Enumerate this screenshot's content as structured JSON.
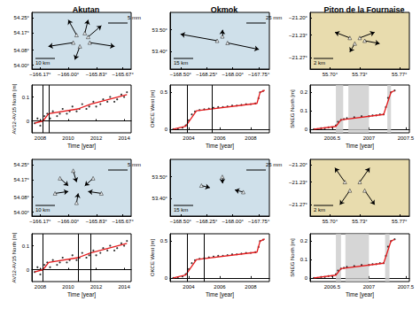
{
  "chart_data": [
    {
      "type": "map",
      "title": "Akutan",
      "color": "#cfe0ea",
      "grid": false,
      "xlim": [
        -166.22,
        -165.62
      ],
      "ylim": [
        53.98,
        54.28
      ],
      "xticks": [
        {
          "value": -166.17,
          "label": "−166.17°"
        },
        {
          "value": -166.0,
          "label": "−166.00°"
        },
        {
          "value": -165.83,
          "label": "−165.83°"
        },
        {
          "value": -165.67,
          "label": "−165.67°"
        }
      ],
      "yticks": [
        {
          "value": 54.0,
          "label": "54.00°"
        },
        {
          "value": 54.08,
          "label": "54.08°"
        },
        {
          "value": 54.17,
          "label": "54.17°"
        },
        {
          "value": 54.25,
          "label": "54.25°"
        }
      ],
      "annotations": [
        "10 km",
        "5 mm"
      ],
      "vectors": [
        [
          -165.95,
          54.16,
          -166.0,
          54.24
        ],
        [
          -165.88,
          54.15,
          -165.8,
          54.21
        ],
        [
          -165.97,
          54.12,
          -166.12,
          54.1
        ],
        [
          -165.87,
          54.12,
          -165.72,
          54.1
        ],
        [
          -165.93,
          54.1,
          -165.96,
          54.03
        ],
        [
          -165.9,
          54.17,
          -165.88,
          54.24
        ]
      ]
    },
    {
      "type": "map",
      "title": "Okmok",
      "color": "#cfe0ea",
      "grid": false,
      "xlim": [
        -168.6,
        -167.65
      ],
      "ylim": [
        53.32,
        53.58
      ],
      "xticks": [
        {
          "value": -168.5,
          "label": "−168.50°"
        },
        {
          "value": -168.25,
          "label": "−168.25°"
        },
        {
          "value": -168.0,
          "label": "−168.00°"
        },
        {
          "value": -167.75,
          "label": "−167.75°"
        }
      ],
      "yticks": [
        {
          "value": 53.4,
          "label": "53.40°"
        },
        {
          "value": 53.5,
          "label": "53.50°"
        }
      ],
      "annotations": [
        "15 km",
        "25 mm"
      ],
      "vectors": [
        [
          -168.15,
          53.45,
          -168.5,
          53.48
        ],
        [
          -168.05,
          53.44,
          -167.75,
          53.41
        ],
        [
          -168.1,
          53.47,
          -168.1,
          53.5
        ]
      ]
    },
    {
      "type": "map",
      "title": "Piton de la Fournaise",
      "color": "#e8dcae",
      "grid": false,
      "xlim": [
        55.68,
        55.78
      ],
      "ylim": [
        -21.29,
        -21.19
      ],
      "xticks": [
        {
          "value": 55.7,
          "label": "55.70°"
        },
        {
          "value": 55.73,
          "label": "55.73°"
        },
        {
          "value": 55.77,
          "label": "55.77°"
        }
      ],
      "yticks": [
        {
          "value": -21.27,
          "label": "−21.27°"
        },
        {
          "value": -21.23,
          "label": "−21.23°"
        },
        {
          "value": -21.2,
          "label": "−21.20°"
        }
      ],
      "annotations": [
        "2 km"
      ],
      "vectors": [
        [
          55.72,
          -21.235,
          55.705,
          -21.225
        ],
        [
          55.73,
          -21.235,
          55.745,
          -21.225
        ],
        [
          55.725,
          -21.245,
          55.72,
          -21.26
        ],
        [
          55.735,
          -21.24,
          55.75,
          -21.245
        ]
      ]
    },
    {
      "type": "scatter",
      "x_label": "Time [year]",
      "y_label": "AV12-AV15 North [m]",
      "grid": false,
      "xlim": [
        2007.4,
        2014.5
      ],
      "ylim": [
        -0.05,
        0.15
      ],
      "xticks": [
        2008,
        2010,
        2012,
        2014
      ],
      "yticks": [
        0,
        0.1
      ],
      "events": [
        2008.2,
        2008.6
      ],
      "series": [
        {
          "type": "scatter",
          "marker": "circle",
          "color": "#000000",
          "x": [
            2007.6,
            2007.8,
            2008.0,
            2008.1,
            2008.3,
            2008.5,
            2008.7,
            2008.9,
            2009.2,
            2009.4,
            2009.6,
            2009.9,
            2010.1,
            2010.3,
            2010.6,
            2010.8,
            2011.0,
            2011.3,
            2011.5,
            2011.8,
            2012.0,
            2012.3,
            2012.5,
            2012.8,
            2013.0,
            2013.3,
            2013.5,
            2013.8,
            2014.0,
            2014.2
          ],
          "values": [
            -0.01,
            0.01,
            -0.02,
            0.0,
            0.02,
            0.03,
            0.01,
            0.04,
            0.02,
            0.03,
            0.05,
            0.03,
            0.04,
            0.06,
            0.04,
            0.05,
            0.07,
            0.05,
            0.06,
            0.08,
            0.06,
            0.07,
            0.09,
            0.08,
            0.1,
            0.08,
            0.09,
            0.11,
            0.1,
            0.12
          ]
        },
        {
          "type": "line",
          "line_style": "solid",
          "color": "#e41a1c",
          "x": [
            2007.6,
            2008.2,
            2008.6,
            2010.7,
            2011.6,
            2014.2
          ],
          "values": [
            -0.01,
            0.0,
            0.03,
            0.05,
            0.07,
            0.11
          ]
        }
      ]
    },
    {
      "type": "scatter",
      "x_label": "Time [year]",
      "y_label": "OKCE West [m]",
      "grid": false,
      "xlim": [
        2002.8,
        2009.2
      ],
      "ylim": [
        -0.05,
        0.6
      ],
      "xticks": [
        2004,
        2006,
        2008
      ],
      "yticks": [
        0,
        0.5
      ],
      "events": [
        2003.9,
        2005.5
      ],
      "series": [
        {
          "type": "scatter",
          "marker": "circle",
          "color": "#000000",
          "x": [
            2003.0,
            2003.3,
            2003.6,
            2003.8,
            2004.0,
            2004.2,
            2004.4,
            2004.7,
            2005.0,
            2005.3,
            2005.6,
            2005.9,
            2006.2,
            2006.5,
            2006.8,
            2007.1,
            2007.4,
            2007.7,
            2008.0,
            2008.3,
            2008.5,
            2008.6,
            2008.8
          ],
          "values": [
            0.0,
            0.01,
            0.02,
            0.05,
            0.12,
            0.2,
            0.24,
            0.26,
            0.27,
            0.28,
            0.29,
            0.3,
            0.3,
            0.31,
            0.32,
            0.32,
            0.33,
            0.34,
            0.34,
            0.35,
            0.42,
            0.5,
            0.52
          ]
        },
        {
          "type": "line",
          "line_style": "solid",
          "color": "#e41a1c",
          "x": [
            2003.0,
            2003.8,
            2004.5,
            2008.4,
            2008.6,
            2008.9
          ],
          "values": [
            0.0,
            0.04,
            0.25,
            0.35,
            0.5,
            0.53
          ]
        }
      ]
    },
    {
      "type": "scatter",
      "x_label": "Time [year]",
      "y_label": "SNEG North [m]",
      "grid": false,
      "xlim": [
        2006.2,
        2007.55
      ],
      "ylim": [
        -0.02,
        0.24
      ],
      "xticks": [
        2006.5,
        2007,
        2007.5
      ],
      "yticks": [
        0,
        0.1,
        0.2
      ],
      "periods": [
        [
          2006.55,
          2006.65
        ],
        [
          2006.72,
          2007.0
        ],
        [
          2007.25,
          2007.3
        ]
      ],
      "series": [
        {
          "type": "scatter",
          "marker": "circle",
          "color": "#000000",
          "x": [
            2006.25,
            2006.3,
            2006.35,
            2006.4,
            2006.45,
            2006.5,
            2006.55,
            2006.58,
            2006.62,
            2006.66,
            2006.7,
            2006.8,
            2006.9,
            2007.0,
            2007.05,
            2007.1,
            2007.15,
            2007.2,
            2007.23,
            2007.26,
            2007.3,
            2007.35
          ],
          "values": [
            0.0,
            0.0,
            0.005,
            0.005,
            0.01,
            0.01,
            0.02,
            0.04,
            0.05,
            0.055,
            0.06,
            0.065,
            0.07,
            0.07,
            0.075,
            0.075,
            0.08,
            0.08,
            0.12,
            0.17,
            0.2,
            0.21
          ]
        },
        {
          "type": "line",
          "line_style": "solid",
          "color": "#e41a1c",
          "x": [
            2006.25,
            2006.55,
            2006.62,
            2007.2,
            2007.3,
            2007.35
          ],
          "values": [
            0.0,
            0.015,
            0.05,
            0.08,
            0.2,
            0.21
          ]
        }
      ]
    },
    {
      "type": "map",
      "color": "#cfe0ea",
      "grid": false,
      "xlim": [
        -166.22,
        -165.62
      ],
      "ylim": [
        53.98,
        54.28
      ],
      "xticks": [
        {
          "value": -166.17,
          "label": "−166.17°"
        },
        {
          "value": -166.0,
          "label": "−166.00°"
        },
        {
          "value": -165.83,
          "label": "−165.83°"
        },
        {
          "value": -165.67,
          "label": "−165.67°"
        }
      ],
      "yticks": [
        {
          "value": 54.0,
          "label": "54.00°"
        },
        {
          "value": 54.08,
          "label": "54.08°"
        },
        {
          "value": 54.17,
          "label": "54.17°"
        },
        {
          "value": 54.25,
          "label": "54.25°"
        }
      ],
      "annotations": [
        "10 km",
        "5 mm"
      ],
      "vectors": [
        [
          -166.05,
          54.18,
          -166.0,
          54.14
        ],
        [
          -165.85,
          54.18,
          -165.9,
          54.14
        ],
        [
          -166.08,
          54.1,
          -166.0,
          54.11
        ],
        [
          -165.8,
          54.1,
          -165.88,
          54.11
        ],
        [
          -165.95,
          54.05,
          -165.94,
          54.1
        ],
        [
          -165.97,
          54.22,
          -165.95,
          54.16
        ]
      ]
    },
    {
      "type": "map",
      "color": "#cfe0ea",
      "grid": false,
      "xlim": [
        -168.6,
        -167.65
      ],
      "ylim": [
        53.32,
        53.58
      ],
      "xticks": [
        {
          "value": -168.5,
          "label": "−168.50°"
        },
        {
          "value": -168.25,
          "label": "−168.25°"
        },
        {
          "value": -168.0,
          "label": "−168.00°"
        },
        {
          "value": -167.75,
          "label": "−167.75°"
        }
      ],
      "yticks": [
        {
          "value": 53.4,
          "label": "53.40°"
        },
        {
          "value": 53.5,
          "label": "53.50°"
        }
      ],
      "annotations": [
        "15 km",
        "25 mm"
      ],
      "vectors": [
        [
          -168.3,
          53.46,
          -168.22,
          53.45
        ],
        [
          -167.9,
          53.43,
          -167.98,
          53.44
        ],
        [
          -168.1,
          53.5,
          -168.1,
          53.47
        ]
      ]
    },
    {
      "type": "map",
      "color": "#e8dcae",
      "grid": false,
      "xlim": [
        55.68,
        55.78
      ],
      "ylim": [
        -21.29,
        -21.19
      ],
      "xticks": [
        {
          "value": 55.7,
          "label": "55.70°"
        },
        {
          "value": 55.73,
          "label": "55.73°"
        },
        {
          "value": 55.77,
          "label": "55.77°"
        }
      ],
      "yticks": [
        {
          "value": -21.27,
          "label": "−21.27°"
        },
        {
          "value": -21.23,
          "label": "−21.23°"
        },
        {
          "value": -21.2,
          "label": "−21.20°"
        }
      ],
      "annotations": [
        "2 km"
      ],
      "vectors": [
        [
          55.715,
          -21.23,
          55.705,
          -21.205
        ],
        [
          55.73,
          -21.23,
          55.74,
          -21.205
        ],
        [
          55.72,
          -21.245,
          55.71,
          -21.27
        ],
        [
          55.735,
          -21.245,
          55.745,
          -21.27
        ]
      ]
    },
    {
      "type": "scatter",
      "x_label": "Time [year]",
      "y_label": "AV12-AV15 North [m]",
      "grid": false,
      "xlim": [
        2007.4,
        2014.5
      ],
      "ylim": [
        -0.05,
        0.15
      ],
      "xticks": [
        2008,
        2010,
        2012,
        2014
      ],
      "yticks": [
        0,
        0.1
      ],
      "events": [
        2008.2,
        2010.7,
        2011.6
      ],
      "series": [
        {
          "type": "scatter",
          "marker": "circle",
          "color": "#000000",
          "x": [
            2007.6,
            2007.8,
            2008.0,
            2008.1,
            2008.3,
            2008.5,
            2008.7,
            2008.9,
            2009.2,
            2009.4,
            2009.6,
            2009.9,
            2010.1,
            2010.3,
            2010.6,
            2010.8,
            2011.0,
            2011.3,
            2011.5,
            2011.8,
            2012.0,
            2012.3,
            2012.5,
            2012.8,
            2013.0,
            2013.3,
            2013.5,
            2013.8,
            2014.0,
            2014.2
          ],
          "values": [
            -0.01,
            0.01,
            -0.02,
            0.0,
            0.02,
            0.03,
            0.01,
            0.04,
            0.02,
            0.03,
            0.05,
            0.03,
            0.04,
            0.06,
            0.04,
            0.05,
            0.07,
            0.05,
            0.06,
            0.08,
            0.06,
            0.07,
            0.09,
            0.08,
            0.1,
            0.08,
            0.09,
            0.11,
            0.1,
            0.12
          ]
        },
        {
          "type": "line",
          "line_style": "solid",
          "color": "#e41a1c",
          "x": [
            2007.6,
            2008.2,
            2008.6,
            2010.7,
            2011.6,
            2014.2
          ],
          "values": [
            -0.01,
            0.0,
            0.03,
            0.05,
            0.07,
            0.11
          ]
        }
      ]
    },
    {
      "type": "scatter",
      "x_label": "Time [year]",
      "y_label": "OKCE West [m]",
      "grid": false,
      "xlim": [
        2002.8,
        2009.2
      ],
      "ylim": [
        -0.05,
        0.6
      ],
      "xticks": [
        2004,
        2006,
        2008
      ],
      "yticks": [
        0,
        0.5
      ],
      "events": [
        2003.9,
        2005.0
      ],
      "series": [
        {
          "type": "scatter",
          "marker": "circle",
          "color": "#000000",
          "x": [
            2003.0,
            2003.3,
            2003.6,
            2003.8,
            2004.0,
            2004.2,
            2004.4,
            2004.7,
            2005.0,
            2005.3,
            2005.6,
            2005.9,
            2006.2,
            2006.5,
            2006.8,
            2007.1,
            2007.4,
            2007.7,
            2008.0,
            2008.3,
            2008.5,
            2008.6,
            2008.8
          ],
          "values": [
            0.0,
            0.01,
            0.02,
            0.05,
            0.12,
            0.2,
            0.24,
            0.26,
            0.27,
            0.28,
            0.29,
            0.3,
            0.3,
            0.31,
            0.32,
            0.32,
            0.33,
            0.34,
            0.34,
            0.35,
            0.42,
            0.5,
            0.52
          ]
        },
        {
          "type": "line",
          "line_style": "solid",
          "color": "#e41a1c",
          "x": [
            2003.0,
            2003.8,
            2004.5,
            2008.4,
            2008.6,
            2008.9
          ],
          "values": [
            0.0,
            0.04,
            0.25,
            0.35,
            0.5,
            0.53
          ]
        }
      ]
    },
    {
      "type": "scatter",
      "x_label": "Time [year]",
      "y_label": "SNEG North [m]",
      "grid": false,
      "xlim": [
        2006.2,
        2007.55
      ],
      "ylim": [
        -0.02,
        0.24
      ],
      "xticks": [
        2006.5,
        2007,
        2007.5
      ],
      "yticks": [
        0,
        0.1,
        0.2
      ],
      "periods": [
        [
          2006.55,
          2006.62
        ],
        [
          2006.68,
          2007.0
        ],
        [
          2007.22,
          2007.28
        ]
      ],
      "series": [
        {
          "type": "scatter",
          "marker": "circle",
          "color": "#000000",
          "x": [
            2006.25,
            2006.3,
            2006.35,
            2006.4,
            2006.45,
            2006.5,
            2006.55,
            2006.58,
            2006.62,
            2006.66,
            2006.7,
            2006.8,
            2006.9,
            2007.0,
            2007.05,
            2007.1,
            2007.15,
            2007.2,
            2007.23,
            2007.26,
            2007.3,
            2007.35
          ],
          "values": [
            0.0,
            0.0,
            0.005,
            0.005,
            0.01,
            0.01,
            0.02,
            0.04,
            0.05,
            0.055,
            0.06,
            0.065,
            0.07,
            0.07,
            0.075,
            0.075,
            0.08,
            0.08,
            0.12,
            0.17,
            0.2,
            0.21
          ]
        },
        {
          "type": "line",
          "line_style": "solid",
          "color": "#e41a1c",
          "x": [
            2006.25,
            2006.55,
            2006.62,
            2007.2,
            2007.3,
            2007.35
          ],
          "values": [
            0.0,
            0.015,
            0.05,
            0.08,
            0.2,
            0.21
          ]
        }
      ]
    }
  ]
}
